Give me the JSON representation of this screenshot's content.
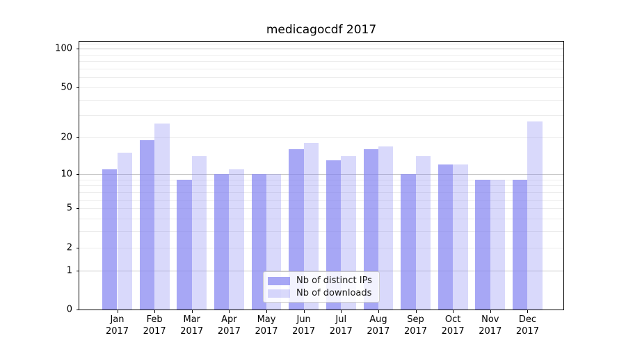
{
  "title": "medicagocdf 2017",
  "chart_data": {
    "type": "bar",
    "categories": [
      {
        "month": "Jan",
        "year": "2017"
      },
      {
        "month": "Feb",
        "year": "2017"
      },
      {
        "month": "Mar",
        "year": "2017"
      },
      {
        "month": "Apr",
        "year": "2017"
      },
      {
        "month": "May",
        "year": "2017"
      },
      {
        "month": "Jun",
        "year": "2017"
      },
      {
        "month": "Jul",
        "year": "2017"
      },
      {
        "month": "Aug",
        "year": "2017"
      },
      {
        "month": "Sep",
        "year": "2017"
      },
      {
        "month": "Oct",
        "year": "2017"
      },
      {
        "month": "Nov",
        "year": "2017"
      },
      {
        "month": "Dec",
        "year": "2017"
      }
    ],
    "series": [
      {
        "name": "Nb of distinct IPs",
        "values": [
          11,
          19,
          9,
          10,
          10,
          16,
          13,
          16,
          10,
          12,
          9,
          9
        ],
        "color": "rgba(130,130,241,0.7)"
      },
      {
        "name": "Nb of downloads",
        "values": [
          15,
          26,
          14,
          11,
          10,
          18,
          14,
          17,
          14,
          12,
          9,
          27
        ],
        "color": "rgba(130,130,241,0.3)"
      }
    ],
    "title": "medicagocdf 2017",
    "xlabel": "",
    "ylabel": "",
    "yscale": "log1p",
    "ylim": [
      0,
      113
    ],
    "yticks": [
      0,
      1,
      2,
      5,
      10,
      20,
      50,
      100
    ],
    "major_gridlines": [
      1,
      10,
      100
    ],
    "minor_gridlines": [
      2,
      3,
      4,
      5,
      6,
      7,
      8,
      9,
      20,
      30,
      40,
      50,
      60,
      70,
      80,
      90,
      110
    ],
    "grid": true,
    "legend_position": "lower center"
  },
  "colors": {
    "background": "#ffffff",
    "axis": "#000000",
    "grid_major": "#c9c9c9",
    "grid_minor": "#ececec",
    "legend_border": "#cccccc",
    "text": "#000000",
    "bar_base": "#8282f1"
  }
}
